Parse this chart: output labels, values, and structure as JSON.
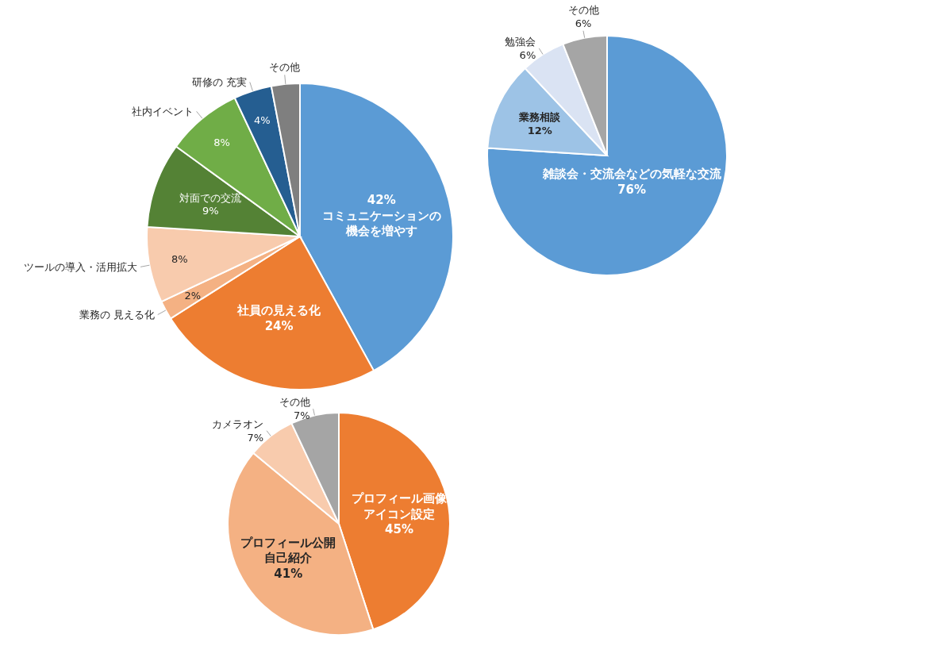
{
  "chart_data": [
    {
      "type": "pie",
      "categories": [
        "コミュニケーションの機会を増やす",
        "社員の見える化",
        "業務の 見える化",
        "ツールの導入・活用拡大",
        "対面での交流",
        "社内イベント",
        "研修の 充実",
        "その他"
      ],
      "values": [
        42,
        24,
        2,
        8,
        9,
        8,
        4,
        3
      ],
      "colors": [
        "#5b9bd5",
        "#ed7d31",
        "#f4b183",
        "#f8cbad",
        "#548235",
        "#70ad47",
        "#255e91",
        "#7f7f7f"
      ],
      "value_labels": [
        "42%",
        "24%",
        "2%",
        "8%",
        "9%",
        "8%",
        "4%",
        null
      ]
    },
    {
      "type": "pie",
      "categories": [
        "雑談会・交流会などの気軽な交流",
        "業務相談",
        "勉強会",
        "その他"
      ],
      "values": [
        76,
        12,
        6,
        6
      ],
      "colors": [
        "#5b9bd5",
        "#9dc3e6",
        "#dae3f3",
        "#a5a5a5"
      ],
      "value_labels": [
        "76%",
        "12%",
        "6%",
        "6%"
      ]
    },
    {
      "type": "pie",
      "categories": [
        "プロフィール画像アイコン設定",
        "プロフィール公開自己紹介",
        "カメラオン",
        "その他"
      ],
      "values": [
        45,
        41,
        7,
        7
      ],
      "colors": [
        "#ed7d31",
        "#f4b183",
        "#f8cbad",
        "#a5a5a5"
      ],
      "value_labels": [
        "45%",
        "41%",
        "7%",
        "7%"
      ]
    }
  ]
}
